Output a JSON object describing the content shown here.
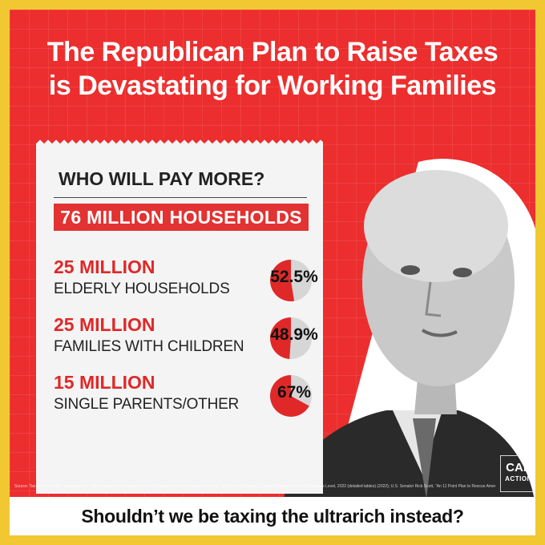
{
  "headline": {
    "line1": "The Republican Plan to Raise Taxes",
    "line2": "is Devastating for Working Families"
  },
  "card": {
    "question": "WHO WILL PAY MORE?",
    "total": "76 MILLION HOUSEHOLDS",
    "rows": [
      {
        "number": "25 MILLION",
        "label": "ELDERLY HOUSEHOLDS",
        "percent_label": "52.5%",
        "share": 0.525
      },
      {
        "number": "25 MILLION",
        "label": "FAMILIES WITH CHILDREN",
        "percent_label": "48.9%",
        "share": 0.489
      },
      {
        "number": "15 MILLION",
        "label": "SINGLE PARENTS/OTHER",
        "percent_label": "67%",
        "share": 0.67
      }
    ]
  },
  "source_note": "Source: Tax Policy Center, \"Distribution of Federal Payroll and Income Taxes by Expanded Cash Income Percentile\"; U.S. Census Bureau, Current Population Survey, Families Level, 2022 (detailed tables) (2022); U.S. Senator Rick Scott, \"An 11 Point Plan to Rescue America\" (2022). Photo: Getty News Images.",
  "logo": {
    "line1": "CAP",
    "line2": "ACTION"
  },
  "footer": {
    "text": "Shouldn’t we be taxing the ultrarich instead?"
  },
  "colors": {
    "red": "#ec2e2e",
    "yellow": "#f2c832",
    "pie_fill": "#e02828",
    "pie_rest": "#d6d6d6"
  }
}
